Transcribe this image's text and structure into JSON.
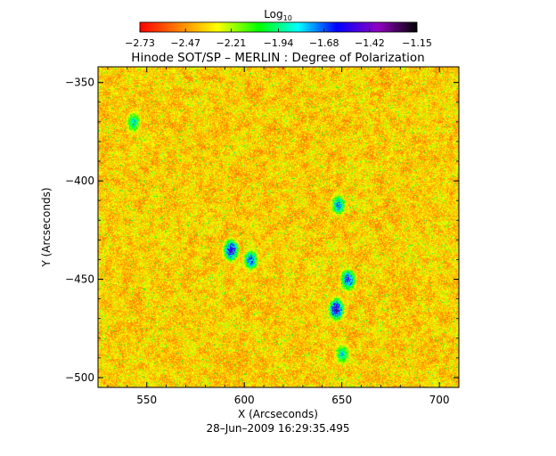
{
  "chart_data": {
    "type": "heatmap",
    "title": "Hinode SOT/SP – MERLIN : Degree of Polarization",
    "xlabel": "X (Arcseconds)",
    "ylabel": "Y (Arcseconds)",
    "xlim": [
      525,
      710
    ],
    "ylim": [
      -505,
      -342
    ],
    "xticks": [
      550,
      600,
      650,
      700
    ],
    "yticks": [
      -350,
      -400,
      -450,
      -500
    ],
    "xtick_labels": [
      "550",
      "600",
      "650",
      "700"
    ],
    "ytick_labels": [
      "−350",
      "−400",
      "−450",
      "−500"
    ],
    "timestamp": "28–Jun–2009 16:29:35.495",
    "colorbar": {
      "label_base": "Log",
      "label_sub": "10",
      "min": -2.73,
      "max": -1.15,
      "ticks": [
        -2.73,
        -2.47,
        -2.21,
        -1.94,
        -1.68,
        -1.42,
        -1.15
      ],
      "tick_labels": [
        "−2.73",
        "−2.47",
        "−2.21",
        "−1.94",
        "−1.68",
        "−1.42",
        "−1.15"
      ],
      "colormap": [
        "#ff0000",
        "#ff8000",
        "#ffff00",
        "#00ff00",
        "#00ffff",
        "#0000ff",
        "#9000c0",
        "#000000"
      ]
    },
    "features": [
      {
        "x": 593,
        "y": -435,
        "value": -1.5
      },
      {
        "x": 603,
        "y": -440,
        "value": -1.7
      },
      {
        "x": 647,
        "y": -465,
        "value": -1.45
      },
      {
        "x": 653,
        "y": -450,
        "value": -1.6
      },
      {
        "x": 648,
        "y": -412,
        "value": -1.75
      },
      {
        "x": 543,
        "y": -370,
        "value": -1.85
      },
      {
        "x": 650,
        "y": -488,
        "value": -1.85
      }
    ]
  }
}
